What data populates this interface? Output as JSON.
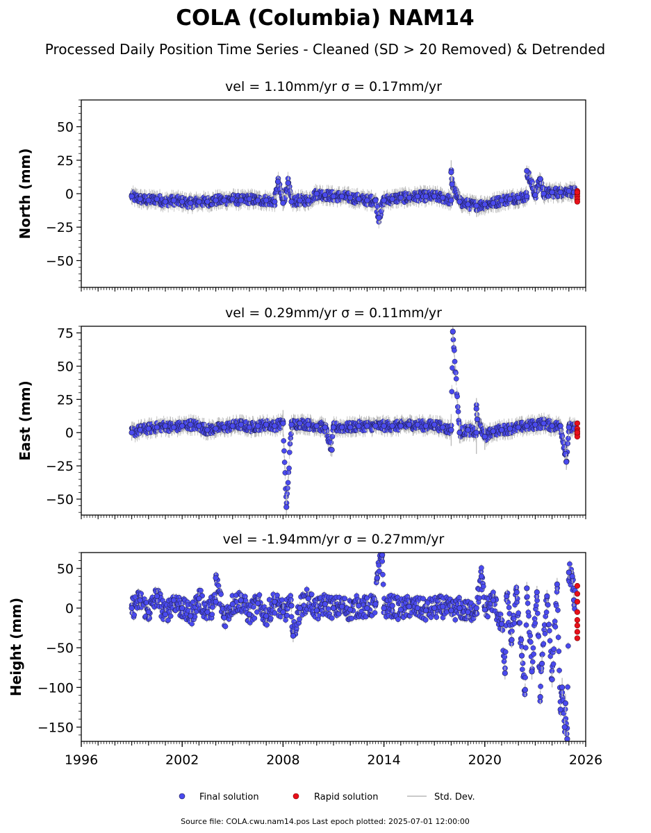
{
  "figure": {
    "title": "COLA (Columbia) NAM14",
    "subtitle": "Processed Daily Position Time Series - Cleaned (SD > 20 Removed) & Detrended",
    "legend": {
      "final_label": "Final solution",
      "rapid_label": "Rapid solution",
      "std_label": "Std. Dev."
    },
    "footer": "Source file: COLA.cwu.nam14.pos  Last epoch plotted: 2025-07-01 12:00:00",
    "colors": {
      "final_fill": "#4a4aee",
      "final_edge": "#1a1a40",
      "rapid_fill": "#e8101a",
      "rapid_edge": "#7a0000",
      "std_line": "#b8b8b8"
    }
  },
  "chart_data": [
    {
      "type": "scatter",
      "title": "vel = 1.10mm/yr   σ = 0.17mm/yr",
      "ylabel": "North (mm)",
      "xlim": [
        1996,
        2026
      ],
      "ylim": [
        -70,
        70
      ],
      "yticks": [
        50,
        25,
        0,
        -25,
        -50
      ],
      "ytick_labels": [
        "50",
        "25",
        "0",
        "−25",
        "−50"
      ],
      "series": [
        {
          "name": "Final solution",
          "x": [
            1999.0,
            1999.5,
            2000.0,
            2000.5,
            2001.0,
            2001.5,
            2002.0,
            2002.5,
            2003.0,
            2003.5,
            2004.0,
            2004.5,
            2005.0,
            2005.5,
            2006.0,
            2006.5,
            2007.0,
            2007.5,
            2008.0,
            2008.5,
            2009.0,
            2009.5,
            2010.0,
            2010.5,
            2011.0,
            2011.5,
            2012.0,
            2012.5,
            2013.0,
            2013.5,
            2014.0,
            2014.5,
            2015.0,
            2015.5,
            2016.0,
            2016.5,
            2017.0,
            2017.5,
            2018.0,
            2018.5,
            2019.0,
            2019.5,
            2020.0,
            2020.5,
            2021.0,
            2021.5,
            2022.0,
            2022.5,
            2023.0,
            2023.5,
            2024.0,
            2024.5,
            2025.0,
            2025.3,
            2007.7,
            2008.3,
            2018.0,
            2018.05,
            2013.7,
            2022.5,
            2023.3
          ],
          "y": [
            -2,
            -4,
            -5,
            -4,
            -6,
            -5,
            -6,
            -7,
            -6,
            -6,
            -5,
            -5,
            -4,
            -5,
            -4,
            -5,
            -5,
            -6,
            -7,
            -6,
            -5,
            -5,
            0,
            -1,
            -2,
            -2,
            -3,
            -4,
            -5,
            -5,
            -5,
            -4,
            -3,
            -3,
            -2,
            -2,
            -2,
            -3,
            -5,
            -6,
            -8,
            -9,
            -8,
            -7,
            -5,
            -4,
            -3,
            -2,
            -1,
            0,
            1,
            1,
            2,
            1,
            9,
            8,
            16,
            7,
            -18,
            17,
            11
          ],
          "err": [
            6,
            4,
            4,
            4,
            4,
            4,
            4,
            4,
            4,
            4,
            4,
            4,
            4,
            4,
            4,
            4,
            4,
            5,
            6,
            5,
            5,
            4,
            4,
            4,
            4,
            4,
            4,
            4,
            4,
            4,
            4,
            4,
            4,
            4,
            4,
            4,
            4,
            4,
            6,
            5,
            5,
            6,
            6,
            5,
            5,
            5,
            5,
            5,
            5,
            5,
            5,
            5,
            5,
            5,
            4,
            4,
            9,
            6,
            4,
            4,
            4
          ]
        },
        {
          "name": "Rapid solution",
          "x": [
            2025.5,
            2025.5,
            2025.5,
            2025.5,
            2025.5,
            2025.5
          ],
          "y": [
            2,
            0,
            -2,
            -4,
            -6,
            1
          ]
        }
      ]
    },
    {
      "type": "scatter",
      "title": "vel = 0.29mm/yr   σ = 0.11mm/yr",
      "ylabel": "East (mm)",
      "xlim": [
        1996,
        2026
      ],
      "ylim": [
        -62,
        80
      ],
      "yticks": [
        75,
        50,
        25,
        0,
        -25,
        -50
      ],
      "ytick_labels": [
        "75",
        "50",
        "25",
        "0",
        "−25",
        "−50"
      ],
      "series": [
        {
          "name": "Final solution",
          "x": [
            1999.0,
            1999.5,
            2000.0,
            2000.5,
            2001.0,
            2001.5,
            2002.0,
            2002.5,
            2003.0,
            2003.5,
            2004.0,
            2004.5,
            2005.0,
            2005.5,
            2006.0,
            2006.5,
            2007.0,
            2007.5,
            2008.0,
            2008.5,
            2009.0,
            2009.5,
            2010.0,
            2010.5,
            2011.0,
            2011.5,
            2012.0,
            2012.5,
            2013.0,
            2013.5,
            2014.0,
            2014.5,
            2015.0,
            2015.5,
            2016.0,
            2016.5,
            2017.0,
            2017.5,
            2018.0,
            2018.5,
            2019.0,
            2019.5,
            2020.0,
            2020.5,
            2021.0,
            2021.5,
            2022.0,
            2022.5,
            2023.0,
            2023.5,
            2024.0,
            2024.5,
            2025.0,
            2025.3,
            2008.2,
            2018.1,
            2019.5,
            2019.55,
            2010.9,
            2024.8,
            2024.85
          ],
          "y": [
            0,
            2,
            3,
            4,
            5,
            4,
            5,
            6,
            5,
            2,
            3,
            4,
            5,
            6,
            4,
            5,
            6,
            5,
            7,
            6,
            7,
            6,
            5,
            4,
            4,
            4,
            4,
            5,
            5,
            5,
            5,
            5,
            5,
            6,
            6,
            5,
            6,
            4,
            2,
            0,
            2,
            0,
            -3,
            1,
            2,
            3,
            4,
            5,
            6,
            7,
            5,
            5,
            4,
            3,
            -56,
            76,
            18,
            10,
            -13,
            -16,
            -22
          ],
          "err": [
            6,
            4,
            4,
            4,
            4,
            4,
            4,
            4,
            4,
            4,
            4,
            4,
            4,
            4,
            4,
            4,
            4,
            4,
            10,
            5,
            4,
            4,
            4,
            4,
            4,
            4,
            4,
            4,
            4,
            4,
            4,
            4,
            4,
            4,
            4,
            4,
            4,
            5,
            12,
            8,
            6,
            16,
            10,
            5,
            5,
            5,
            5,
            5,
            5,
            5,
            5,
            5,
            5,
            5,
            10,
            6,
            8,
            6,
            4,
            6,
            6
          ]
        },
        {
          "name": "Rapid solution",
          "x": [
            2025.5,
            2025.5,
            2025.5,
            2025.5,
            2025.5,
            2025.5
          ],
          "y": [
            7,
            3,
            1,
            -1,
            -3,
            0
          ]
        }
      ]
    },
    {
      "type": "scatter",
      "title": "vel = -1.94mm/yr   σ = 0.27mm/yr",
      "ylabel": "Height (mm)",
      "xlim": [
        1996,
        2026
      ],
      "ylim": [
        -168,
        70
      ],
      "yticks": [
        50,
        0,
        -50,
        -100,
        -150
      ],
      "ytick_labels": [
        "50",
        "0",
        "−50",
        "−100",
        "−150"
      ],
      "xticks": [
        1996,
        2002,
        2008,
        2014,
        2020,
        2026
      ],
      "xtick_labels": [
        "1996",
        "2002",
        "2008",
        "2014",
        "2020",
        "2026"
      ],
      "series": [
        {
          "name": "Final solution",
          "x": [
            1999.0,
            1999.5,
            2000.0,
            2000.5,
            2001.0,
            2001.5,
            2002.0,
            2002.5,
            2003.0,
            2003.5,
            2004.0,
            2004.5,
            2005.0,
            2005.5,
            2006.0,
            2006.5,
            2007.0,
            2007.5,
            2008.0,
            2008.5,
            2009.0,
            2009.5,
            2010.0,
            2010.5,
            2011.0,
            2011.5,
            2012.0,
            2012.5,
            2013.0,
            2013.5,
            2014.0,
            2014.5,
            2015.0,
            2015.5,
            2016.0,
            2016.5,
            2017.0,
            2017.5,
            2018.0,
            2018.5,
            2019.0,
            2019.5,
            2020.0,
            2020.5,
            2021.0,
            2021.3,
            2021.6,
            2021.9,
            2022.2,
            2022.5,
            2022.8,
            2023.1,
            2023.4,
            2023.7,
            2024.0,
            2024.3,
            2024.6,
            2024.8,
            2025.0,
            2025.2,
            2025.3,
            2013.6,
            2013.9,
            2004.0,
            2019.8,
            2008.6,
            2021.2,
            2022.4,
            2023.3,
            2024.5,
            2024.75,
            2024.9
          ],
          "y": [
            0,
            10,
            -5,
            15,
            -8,
            10,
            0,
            -10,
            12,
            -5,
            8,
            -12,
            5,
            10,
            -8,
            6,
            -10,
            8,
            -5,
            3,
            0,
            12,
            -3,
            5,
            0,
            2,
            -2,
            3,
            0,
            5,
            0,
            3,
            -2,
            2,
            0,
            -3,
            0,
            2,
            -3,
            0,
            -5,
            0,
            -2,
            10,
            -20,
            15,
            -40,
            20,
            -60,
            25,
            -80,
            20,
            -70,
            15,
            -90,
            30,
            -100,
            -120,
            45,
            40,
            10,
            38,
            67,
            38,
            40,
            -35,
            -82,
            -103,
            -112,
            -128,
            -150,
            -165
          ],
          "err": [
            8,
            8,
            8,
            8,
            8,
            8,
            8,
            8,
            8,
            8,
            8,
            8,
            8,
            8,
            8,
            8,
            8,
            8,
            10,
            8,
            8,
            8,
            8,
            8,
            8,
            8,
            8,
            8,
            8,
            8,
            8,
            8,
            8,
            8,
            8,
            8,
            8,
            8,
            8,
            8,
            8,
            8,
            8,
            8,
            10,
            8,
            10,
            8,
            10,
            8,
            10,
            8,
            10,
            8,
            10,
            8,
            12,
            12,
            8,
            8,
            8,
            6,
            6,
            6,
            6,
            8,
            8,
            8,
            8,
            8,
            10,
            10
          ]
        },
        {
          "name": "Rapid solution",
          "x": [
            2025.5,
            2025.5,
            2025.5,
            2025.5,
            2025.5,
            2025.5,
            2025.5,
            2025.5
          ],
          "y": [
            28,
            18,
            8,
            -5,
            -15,
            -22,
            -30,
            -38
          ]
        }
      ]
    }
  ]
}
